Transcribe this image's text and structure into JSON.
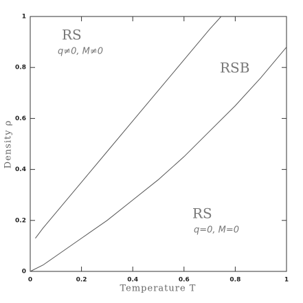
{
  "chart_data": {
    "type": "line",
    "xlabel": "Temperature T",
    "ylabel": "Density ρ",
    "xlim": [
      0,
      1
    ],
    "ylim": [
      0,
      1
    ],
    "xticks": [
      0,
      0.2,
      0.4,
      0.6,
      0.8,
      1
    ],
    "yticks": [
      0,
      0.2,
      0.4,
      0.6,
      0.8,
      1
    ],
    "series": [
      {
        "color": "#555555",
        "x": [
          0.02,
          0.05,
          0.1,
          0.2,
          0.3,
          0.4,
          0.5,
          0.6,
          0.7,
          0.745
        ],
        "values": [
          0.13,
          0.17,
          0.23,
          0.35,
          0.47,
          0.59,
          0.71,
          0.83,
          0.95,
          1.0
        ]
      },
      {
        "color": "#555555",
        "x": [
          0,
          0.05,
          0.1,
          0.2,
          0.3,
          0.4,
          0.5,
          0.6,
          0.7,
          0.8,
          0.9,
          1
        ],
        "values": [
          0,
          0.025,
          0.06,
          0.13,
          0.2,
          0.28,
          0.36,
          0.45,
          0.55,
          0.65,
          0.76,
          0.88
        ]
      }
    ],
    "annotations": [
      "RS",
      "q≠0,  M≠0",
      "RSB",
      "RS",
      "q=0,  M=0"
    ]
  }
}
